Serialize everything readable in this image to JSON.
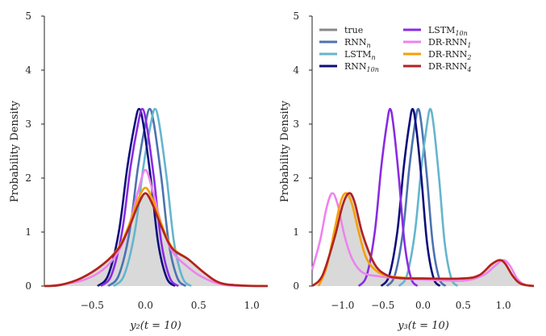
{
  "chart_data": [
    {
      "type": "line",
      "title": "",
      "xlabel": "y₂(t = 10)",
      "ylabel": "Probability Density",
      "xlim": [
        -0.95,
        1.15
      ],
      "ylim": [
        0,
        5
      ],
      "xticks": [
        -0.5,
        0.0,
        0.5,
        1.0
      ],
      "xtick_labels": [
        "−0.5",
        "0.0",
        "0.5",
        "1.0"
      ],
      "yticks": [
        0,
        1,
        2,
        3,
        4,
        5
      ],
      "ytick_labels": [
        "0",
        "1",
        "2",
        "3",
        "4",
        "5"
      ],
      "grid": false,
      "series": [
        {
          "key": "true",
          "color": "#888888",
          "filled": true,
          "values": [
            [
              -0.95,
              0.0
            ],
            [
              -0.8,
              0.02
            ],
            [
              -0.6,
              0.15
            ],
            [
              -0.4,
              0.4
            ],
            [
              -0.25,
              0.7
            ],
            [
              -0.15,
              1.1
            ],
            [
              -0.07,
              1.5
            ],
            [
              0.0,
              1.72
            ],
            [
              0.07,
              1.5
            ],
            [
              0.15,
              1.1
            ],
            [
              0.25,
              0.7
            ],
            [
              0.4,
              0.5
            ],
            [
              0.55,
              0.25
            ],
            [
              0.7,
              0.06
            ],
            [
              0.9,
              0.01
            ],
            [
              1.15,
              0.0
            ]
          ]
        },
        {
          "key": "rnn_n",
          "color": "#4c72b0",
          "values": [
            [
              -0.35,
              0.0
            ],
            [
              -0.25,
              0.2
            ],
            [
              -0.15,
              1.0
            ],
            [
              -0.07,
              2.2
            ],
            [
              0.0,
              3.0
            ],
            [
              0.04,
              3.28
            ],
            [
              0.08,
              3.0
            ],
            [
              0.15,
              2.0
            ],
            [
              0.22,
              0.8
            ],
            [
              0.3,
              0.15
            ],
            [
              0.38,
              0.0
            ]
          ]
        },
        {
          "key": "lstm_n",
          "color": "#64b5cd",
          "values": [
            [
              -0.3,
              0.0
            ],
            [
              -0.2,
              0.2
            ],
            [
              -0.1,
              1.0
            ],
            [
              -0.02,
              2.2
            ],
            [
              0.05,
              3.0
            ],
            [
              0.09,
              3.28
            ],
            [
              0.13,
              3.0
            ],
            [
              0.2,
              2.0
            ],
            [
              0.27,
              0.8
            ],
            [
              0.35,
              0.15
            ],
            [
              0.43,
              0.0
            ]
          ]
        },
        {
          "key": "rnn_10n",
          "color": "#0d0d7a",
          "values": [
            [
              -0.45,
              0.0
            ],
            [
              -0.35,
              0.2
            ],
            [
              -0.25,
              1.0
            ],
            [
              -0.17,
              2.2
            ],
            [
              -0.1,
              3.0
            ],
            [
              -0.06,
              3.28
            ],
            [
              -0.02,
              3.0
            ],
            [
              0.05,
              2.0
            ],
            [
              0.12,
              0.8
            ],
            [
              0.2,
              0.15
            ],
            [
              0.28,
              0.0
            ]
          ]
        },
        {
          "key": "lstm_10n",
          "color": "#8a2be2",
          "values": [
            [
              -0.42,
              0.0
            ],
            [
              -0.32,
              0.2
            ],
            [
              -0.22,
              1.0
            ],
            [
              -0.14,
              2.2
            ],
            [
              -0.07,
              3.0
            ],
            [
              -0.03,
              3.28
            ],
            [
              0.01,
              3.0
            ],
            [
              0.08,
              2.0
            ],
            [
              0.15,
              0.8
            ],
            [
              0.23,
              0.15
            ],
            [
              0.31,
              0.0
            ]
          ]
        },
        {
          "key": "drrnn_1",
          "color": "#ee82ee",
          "values": [
            [
              -0.9,
              0.0
            ],
            [
              -0.6,
              0.1
            ],
            [
              -0.4,
              0.3
            ],
            [
              -0.25,
              0.65
            ],
            [
              -0.15,
              1.15
            ],
            [
              -0.07,
              1.75
            ],
            [
              0.0,
              2.15
            ],
            [
              0.07,
              1.75
            ],
            [
              0.15,
              1.15
            ],
            [
              0.25,
              0.65
            ],
            [
              0.4,
              0.35
            ],
            [
              0.55,
              0.15
            ],
            [
              0.75,
              0.02
            ],
            [
              1.1,
              0.0
            ]
          ]
        },
        {
          "key": "drrnn_2",
          "color": "#f5a000",
          "values": [
            [
              -0.95,
              0.0
            ],
            [
              -0.8,
              0.02
            ],
            [
              -0.6,
              0.15
            ],
            [
              -0.4,
              0.4
            ],
            [
              -0.25,
              0.72
            ],
            [
              -0.15,
              1.15
            ],
            [
              -0.07,
              1.6
            ],
            [
              0.0,
              1.82
            ],
            [
              0.07,
              1.6
            ],
            [
              0.15,
              1.15
            ],
            [
              0.25,
              0.72
            ],
            [
              0.4,
              0.5
            ],
            [
              0.55,
              0.25
            ],
            [
              0.7,
              0.06
            ],
            [
              0.9,
              0.01
            ],
            [
              1.15,
              0.0
            ]
          ]
        },
        {
          "key": "drrnn_4",
          "color": "#b22222",
          "values": [
            [
              -0.95,
              0.0
            ],
            [
              -0.8,
              0.02
            ],
            [
              -0.6,
              0.15
            ],
            [
              -0.4,
              0.4
            ],
            [
              -0.25,
              0.7
            ],
            [
              -0.15,
              1.1
            ],
            [
              -0.07,
              1.5
            ],
            [
              0.0,
              1.72
            ],
            [
              0.07,
              1.5
            ],
            [
              0.15,
              1.1
            ],
            [
              0.25,
              0.7
            ],
            [
              0.4,
              0.5
            ],
            [
              0.55,
              0.25
            ],
            [
              0.7,
              0.06
            ],
            [
              0.9,
              0.01
            ],
            [
              1.15,
              0.0
            ]
          ]
        }
      ]
    },
    {
      "type": "line",
      "title": "",
      "xlabel": "y₃(t = 10)",
      "ylabel": "Probability Density",
      "xlim": [
        -1.38,
        1.38
      ],
      "ylim": [
        0,
        5
      ],
      "xticks": [
        -1.0,
        -0.5,
        0.0,
        0.5,
        1.0
      ],
      "xtick_labels": [
        "−1.0",
        "−0.5",
        "0.0",
        "0.5",
        "1.0"
      ],
      "yticks": [
        0,
        1,
        2,
        3,
        4,
        5
      ],
      "ytick_labels": [
        "0",
        "1",
        "2",
        "3",
        "4",
        "5"
      ],
      "grid": false,
      "legend_position": "top-left",
      "series": [
        {
          "key": "true",
          "color": "#888888",
          "filled": true,
          "values": [
            [
              -1.38,
              0.0
            ],
            [
              -1.25,
              0.2
            ],
            [
              -1.1,
              0.9
            ],
            [
              -1.0,
              1.5
            ],
            [
              -0.92,
              1.72
            ],
            [
              -0.85,
              1.55
            ],
            [
              -0.75,
              0.95
            ],
            [
              -0.6,
              0.4
            ],
            [
              -0.45,
              0.2
            ],
            [
              -0.3,
              0.15
            ],
            [
              0.0,
              0.14
            ],
            [
              0.5,
              0.14
            ],
            [
              0.7,
              0.2
            ],
            [
              0.85,
              0.4
            ],
            [
              0.95,
              0.48
            ],
            [
              1.02,
              0.42
            ],
            [
              1.12,
              0.18
            ],
            [
              1.22,
              0.04
            ],
            [
              1.38,
              0.0
            ]
          ]
        },
        {
          "key": "rnn_n",
          "color": "#4c72b0",
          "values": [
            [
              -0.45,
              0.0
            ],
            [
              -0.35,
              0.2
            ],
            [
              -0.25,
              1.0
            ],
            [
              -0.17,
              2.2
            ],
            [
              -0.1,
              3.0
            ],
            [
              -0.06,
              3.28
            ],
            [
              -0.02,
              3.0
            ],
            [
              0.05,
              2.0
            ],
            [
              0.12,
              0.8
            ],
            [
              0.2,
              0.15
            ],
            [
              0.28,
              0.0
            ]
          ]
        },
        {
          "key": "lstm_n",
          "color": "#64b5cd",
          "values": [
            [
              -0.3,
              0.0
            ],
            [
              -0.2,
              0.2
            ],
            [
              -0.1,
              1.0
            ],
            [
              -0.02,
              2.2
            ],
            [
              0.05,
              3.0
            ],
            [
              0.09,
              3.28
            ],
            [
              0.13,
              3.0
            ],
            [
              0.2,
              2.0
            ],
            [
              0.27,
              0.8
            ],
            [
              0.35,
              0.15
            ],
            [
              0.43,
              0.0
            ]
          ]
        },
        {
          "key": "rnn_10n",
          "color": "#0d0d7a",
          "values": [
            [
              -0.52,
              0.0
            ],
            [
              -0.42,
              0.2
            ],
            [
              -0.32,
              1.0
            ],
            [
              -0.24,
              2.2
            ],
            [
              -0.17,
              3.0
            ],
            [
              -0.13,
              3.28
            ],
            [
              -0.09,
              3.0
            ],
            [
              -0.02,
              2.0
            ],
            [
              0.05,
              0.8
            ],
            [
              0.13,
              0.15
            ],
            [
              0.21,
              0.0
            ]
          ]
        },
        {
          "key": "lstm_10n",
          "color": "#8a2be2",
          "values": [
            [
              -0.8,
              0.0
            ],
            [
              -0.7,
              0.2
            ],
            [
              -0.6,
              1.0
            ],
            [
              -0.52,
              2.2
            ],
            [
              -0.45,
              3.0
            ],
            [
              -0.41,
              3.28
            ],
            [
              -0.37,
              3.0
            ],
            [
              -0.3,
              2.0
            ],
            [
              -0.23,
              0.8
            ],
            [
              -0.15,
              0.15
            ],
            [
              -0.07,
              0.0
            ]
          ]
        },
        {
          "key": "drrnn_1",
          "color": "#ee82ee",
          "values": [
            [
              -1.38,
              0.3
            ],
            [
              -1.28,
              0.85
            ],
            [
              -1.2,
              1.45
            ],
            [
              -1.13,
              1.72
            ],
            [
              -1.06,
              1.5
            ],
            [
              -0.98,
              0.95
            ],
            [
              -0.88,
              0.5
            ],
            [
              -0.75,
              0.25
            ],
            [
              -0.55,
              0.18
            ],
            [
              -0.3,
              0.14
            ],
            [
              0.0,
              0.12
            ],
            [
              0.5,
              0.1
            ],
            [
              0.75,
              0.2
            ],
            [
              0.9,
              0.38
            ],
            [
              1.0,
              0.48
            ],
            [
              1.08,
              0.38
            ],
            [
              1.18,
              0.12
            ],
            [
              1.28,
              0.02
            ],
            [
              1.38,
              0.0
            ]
          ]
        },
        {
          "key": "drrnn_2",
          "color": "#f5a000",
          "values": [
            [
              -1.3,
              0.0
            ],
            [
              -1.2,
              0.35
            ],
            [
              -1.1,
              1.05
            ],
            [
              -1.02,
              1.58
            ],
            [
              -0.95,
              1.72
            ],
            [
              -0.88,
              1.5
            ],
            [
              -0.8,
              1.0
            ],
            [
              -0.7,
              0.5
            ],
            [
              -0.55,
              0.25
            ],
            [
              -0.35,
              0.17
            ],
            [
              0.0,
              0.14
            ],
            [
              0.5,
              0.14
            ],
            [
              0.7,
              0.2
            ],
            [
              0.85,
              0.4
            ],
            [
              0.95,
              0.48
            ],
            [
              1.02,
              0.42
            ],
            [
              1.12,
              0.18
            ],
            [
              1.22,
              0.04
            ],
            [
              1.38,
              0.0
            ]
          ]
        },
        {
          "key": "drrnn_4",
          "color": "#b22222",
          "values": [
            [
              -1.38,
              0.0
            ],
            [
              -1.25,
              0.2
            ],
            [
              -1.1,
              0.9
            ],
            [
              -1.0,
              1.5
            ],
            [
              -0.92,
              1.72
            ],
            [
              -0.85,
              1.55
            ],
            [
              -0.75,
              0.95
            ],
            [
              -0.6,
              0.4
            ],
            [
              -0.45,
              0.2
            ],
            [
              -0.3,
              0.15
            ],
            [
              0.0,
              0.14
            ],
            [
              0.5,
              0.14
            ],
            [
              0.7,
              0.2
            ],
            [
              0.85,
              0.4
            ],
            [
              0.95,
              0.48
            ],
            [
              1.02,
              0.42
            ],
            [
              1.12,
              0.18
            ],
            [
              1.22,
              0.04
            ],
            [
              1.38,
              0.0
            ]
          ]
        }
      ]
    }
  ],
  "legend": [
    {
      "key": "true",
      "base": "true",
      "sub": ""
    },
    {
      "key": "rnn_n",
      "base": "RNN",
      "sub": "n"
    },
    {
      "key": "lstm_n",
      "base": "LSTM",
      "sub": "n"
    },
    {
      "key": "rnn_10n",
      "base": "RNN",
      "sub": "10n"
    },
    {
      "key": "lstm_10n",
      "base": "LSTM",
      "sub": "10n"
    },
    {
      "key": "drrnn_1",
      "base": "DR-RNN",
      "sub": "1"
    },
    {
      "key": "drrnn_2",
      "base": "DR-RNN",
      "sub": "2"
    },
    {
      "key": "drrnn_4",
      "base": "DR-RNN",
      "sub": "4"
    }
  ]
}
